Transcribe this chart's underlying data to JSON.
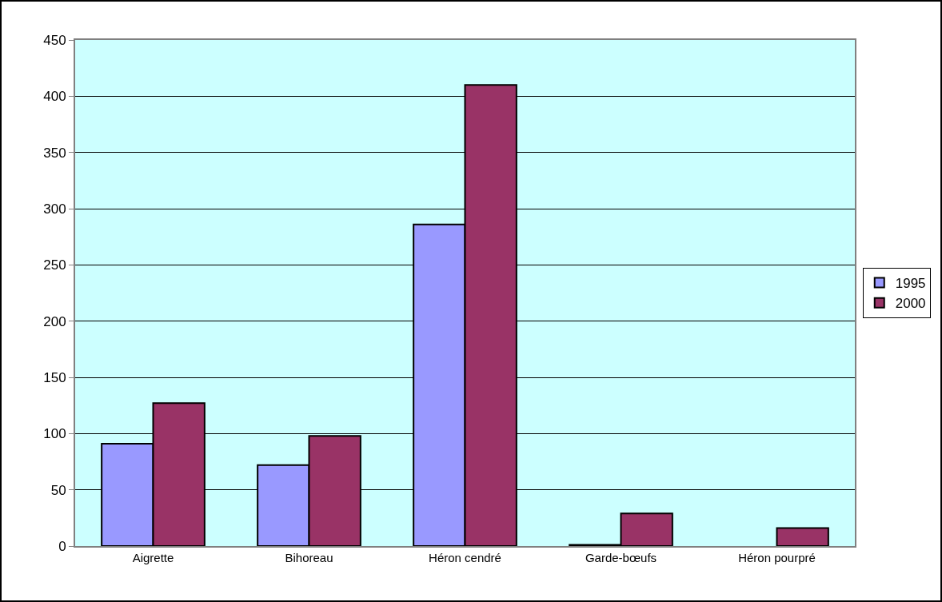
{
  "chart_data": {
    "type": "bar",
    "categories": [
      "Aigrette",
      "Bihoreau",
      "Héron cendré",
      "Garde-bœufs",
      "Héron pourpré"
    ],
    "series": [
      {
        "name": "1995",
        "color": "#9999ff",
        "values": [
          91,
          72,
          286,
          1,
          null
        ]
      },
      {
        "name": "2000",
        "color": "#993366",
        "values": [
          127,
          98,
          410,
          29,
          16
        ]
      }
    ],
    "ylim": [
      0,
      450
    ],
    "yticks": [
      0,
      50,
      100,
      150,
      200,
      250,
      300,
      350,
      400,
      450
    ],
    "grid": "y",
    "legend": "right"
  }
}
